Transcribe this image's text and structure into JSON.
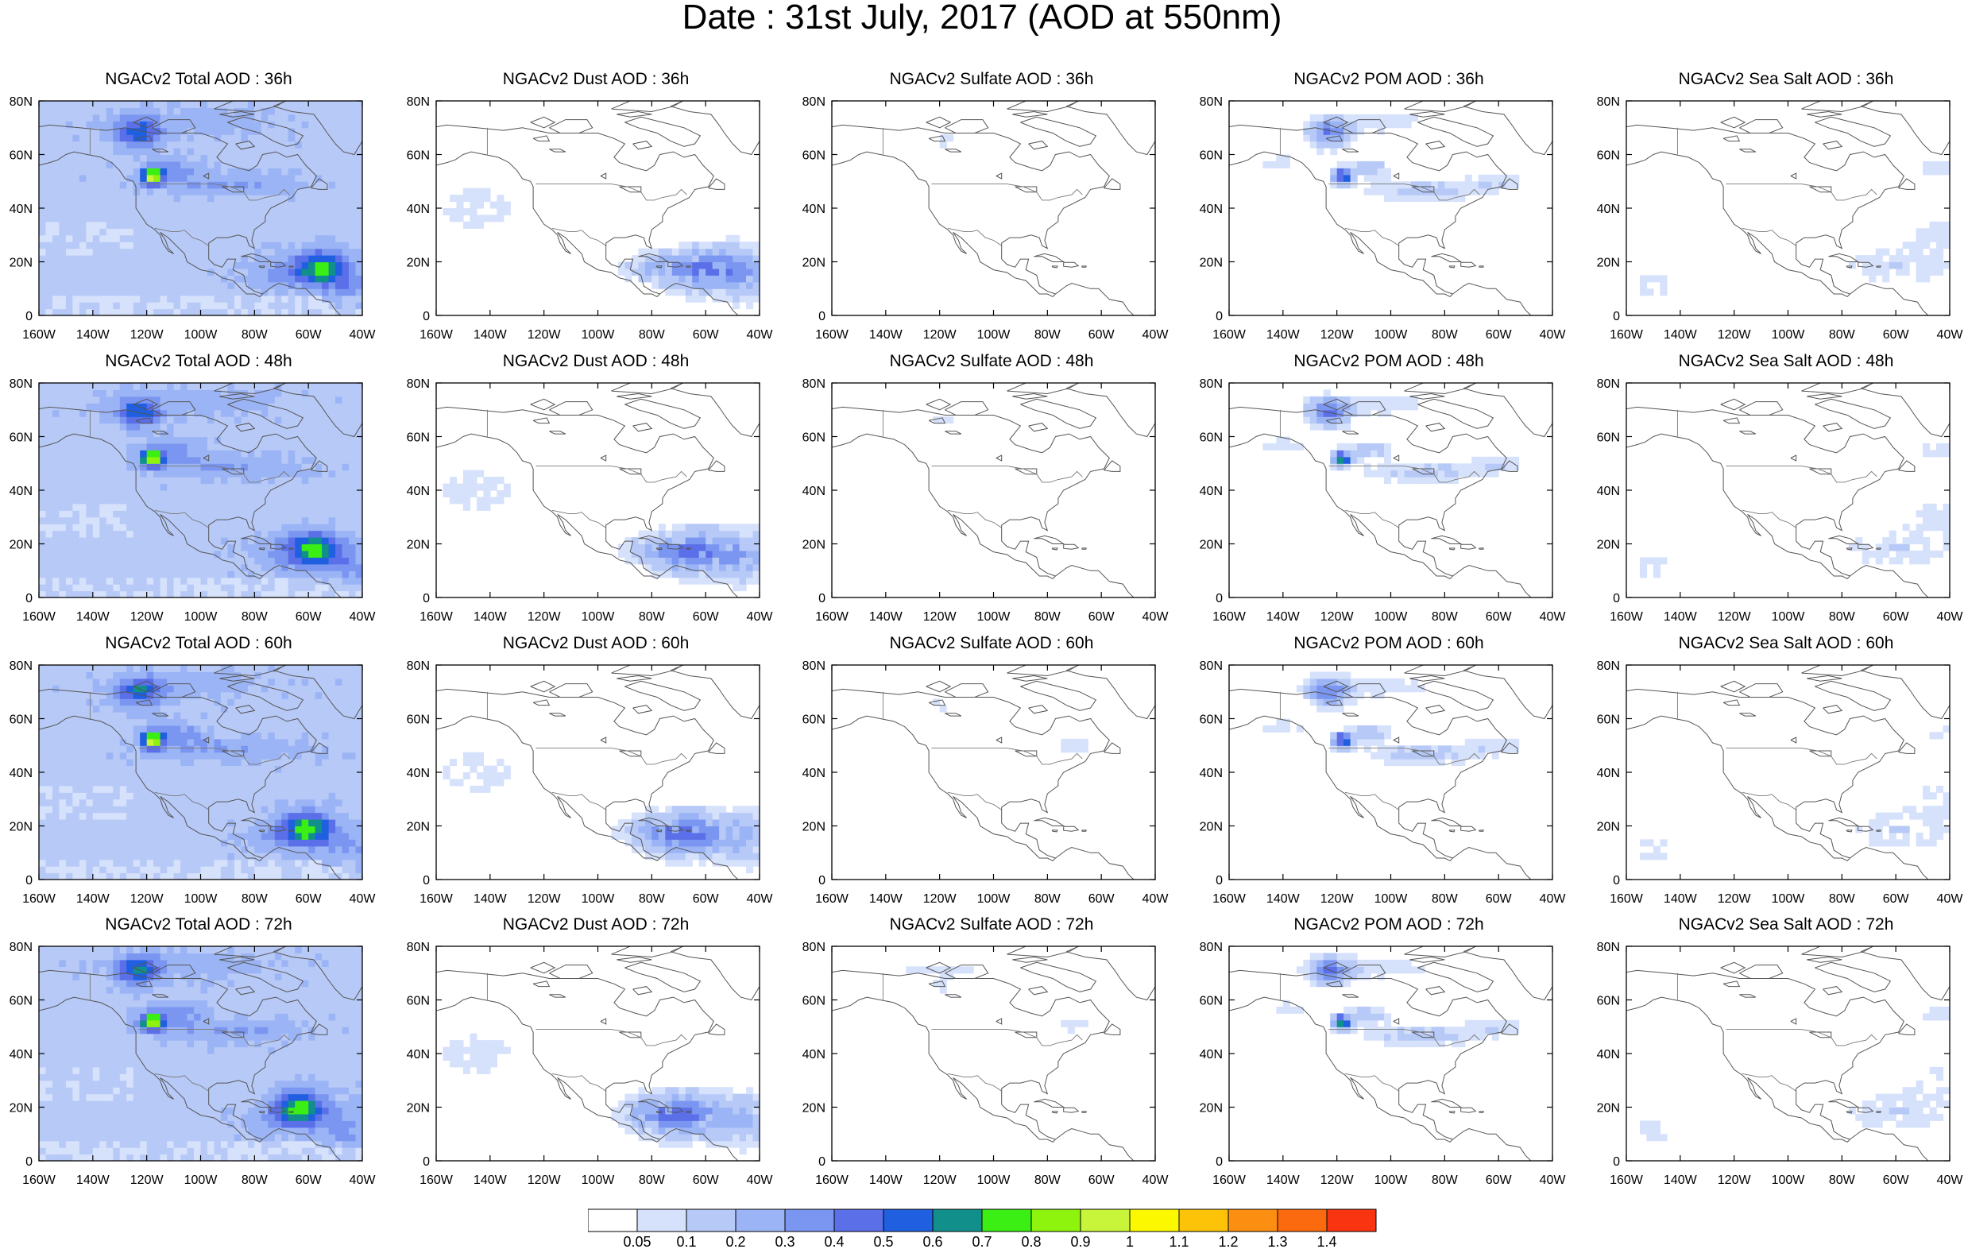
{
  "title": "Date : 31st July, 2017 (AOD at 550nm)",
  "panels": [
    {
      "title": "NGACv2 Total AOD : 36h",
      "kind": "total",
      "lead": 36
    },
    {
      "title": "NGACv2 Dust AOD : 36h",
      "kind": "dust",
      "lead": 36
    },
    {
      "title": "NGACv2 Sulfate AOD : 36h",
      "kind": "sulfate",
      "lead": 36
    },
    {
      "title": "NGACv2 POM AOD : 36h",
      "kind": "pom",
      "lead": 36
    },
    {
      "title": "NGACv2 Sea Salt AOD : 36h",
      "kind": "seasalt",
      "lead": 36
    },
    {
      "title": "NGACv2 Total AOD : 48h",
      "kind": "total",
      "lead": 48
    },
    {
      "title": "NGACv2 Dust AOD : 48h",
      "kind": "dust",
      "lead": 48
    },
    {
      "title": "NGACv2 Sulfate AOD : 48h",
      "kind": "sulfate",
      "lead": 48
    },
    {
      "title": "NGACv2 POM AOD : 48h",
      "kind": "pom",
      "lead": 48
    },
    {
      "title": "NGACv2 Sea Salt AOD : 48h",
      "kind": "seasalt",
      "lead": 48
    },
    {
      "title": "NGACv2 Total AOD : 60h",
      "kind": "total",
      "lead": 60
    },
    {
      "title": "NGACv2 Dust AOD : 60h",
      "kind": "dust",
      "lead": 60
    },
    {
      "title": "NGACv2 Sulfate AOD : 60h",
      "kind": "sulfate",
      "lead": 60
    },
    {
      "title": "NGACv2 POM AOD : 60h",
      "kind": "pom",
      "lead": 60
    },
    {
      "title": "NGACv2 Sea Salt AOD : 60h",
      "kind": "seasalt",
      "lead": 60
    },
    {
      "title": "NGACv2 Total AOD : 72h",
      "kind": "total",
      "lead": 72
    },
    {
      "title": "NGACv2 Dust AOD : 72h",
      "kind": "dust",
      "lead": 72
    },
    {
      "title": "NGACv2 Sulfate AOD : 72h",
      "kind": "sulfate",
      "lead": 72
    },
    {
      "title": "NGACv2 POM AOD : 72h",
      "kind": "pom",
      "lead": 72
    },
    {
      "title": "NGACv2 Sea Salt  AOD : 72h",
      "kind": "seasalt",
      "lead": 72
    }
  ],
  "axes": {
    "lon_ticks": [
      "160W",
      "140W",
      "120W",
      "100W",
      "80W",
      "60W",
      "40W"
    ],
    "lon_values": [
      -160,
      -140,
      -120,
      -100,
      -80,
      -60,
      -40
    ],
    "lat_ticks": [
      "0",
      "20N",
      "40N",
      "60N",
      "80N"
    ],
    "lat_values": [
      0,
      20,
      40,
      60,
      80
    ],
    "lon_range": [
      -160,
      -40
    ],
    "lat_range": [
      0,
      80
    ]
  },
  "colorbar": {
    "labels": [
      "0.05",
      "0.1",
      "0.2",
      "0.3",
      "0.4",
      "0.5",
      "0.6",
      "0.7",
      "0.8",
      "0.9",
      "1",
      "1.1",
      "1.2",
      "1.3",
      "1.4"
    ],
    "colors": [
      "#ffffff",
      "#d6e1fb",
      "#b7c9f7",
      "#9bb4f5",
      "#7b96f1",
      "#5b6fe8",
      "#1f5fe0",
      "#118f8a",
      "#3bef14",
      "#8ef40e",
      "#c8f43a",
      "#fbf800",
      "#fcc308",
      "#fc8f12",
      "#fb6a0f",
      "#f93410"
    ]
  }
}
